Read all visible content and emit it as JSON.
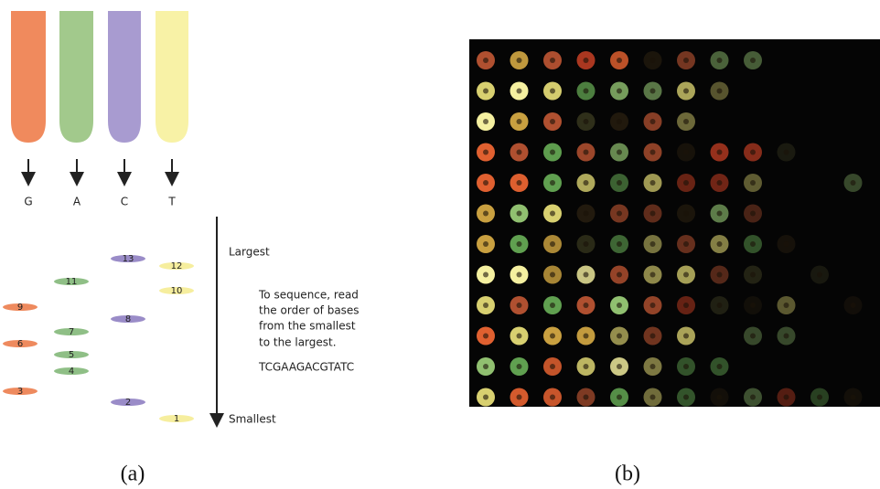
{
  "panel_a": {
    "lanes": [
      "G",
      "A",
      "C",
      "T"
    ],
    "bands": [
      "13",
      "12",
      "11",
      "10",
      "9",
      "8",
      "7",
      "6",
      "5",
      "4",
      "3",
      "2",
      "1"
    ],
    "largest": "Largest",
    "smallest": "Smallest",
    "instructions": [
      "To sequence, read",
      "the order of bases",
      "from the smallest",
      "to the largest."
    ],
    "sequence": "TCGAAGACGTATC",
    "caption": "(a)"
  },
  "panel_b": {
    "caption": "(b)"
  }
}
